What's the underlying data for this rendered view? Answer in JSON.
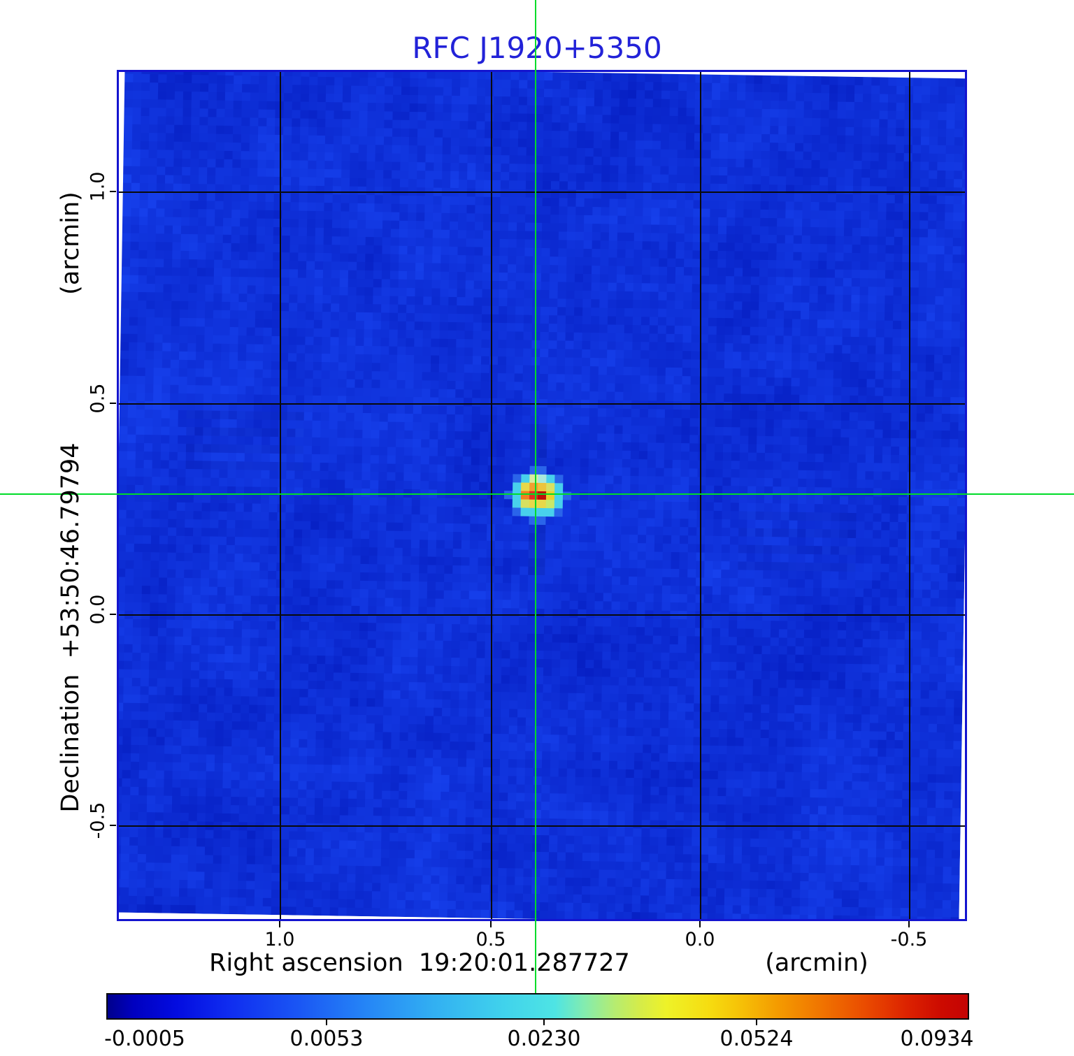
{
  "title": "RFC J1920+5350",
  "title_color": "#2222d8",
  "frame_color": "#1414cf",
  "crosshair_color": "#00dc28",
  "axes": {
    "x": {
      "label": "Right ascension  19:20:01.287727",
      "unit": "(arcmin)",
      "ticks": [
        "1.0",
        "0.5",
        "0.0",
        "-0.5"
      ]
    },
    "y": {
      "label": "Declination  +53:50:46.79794",
      "unit": "(arcmin)",
      "ticks": [
        "1.0",
        "0.5",
        "0.0",
        "-0.5"
      ]
    }
  },
  "colorbar": {
    "labels": [
      "-0.0005",
      "0.0053",
      "0.0230",
      "0.0524",
      "0.0934"
    ],
    "stops": [
      [
        0.0,
        "#00008c"
      ],
      [
        0.03,
        "#0000c0"
      ],
      [
        0.08,
        "#030ce0"
      ],
      [
        0.14,
        "#0f2cf0"
      ],
      [
        0.22,
        "#1a55f4"
      ],
      [
        0.3,
        "#2585f6"
      ],
      [
        0.38,
        "#32b0f2"
      ],
      [
        0.46,
        "#40d2ec"
      ],
      [
        0.52,
        "#4ee4e4"
      ],
      [
        0.555,
        "#84ecae"
      ],
      [
        0.59,
        "#b6ec70"
      ],
      [
        0.62,
        "#d6ec48"
      ],
      [
        0.65,
        "#eef228"
      ],
      [
        0.7,
        "#f6dc10"
      ],
      [
        0.73,
        "#f6c608"
      ],
      [
        0.78,
        "#f49a00"
      ],
      [
        0.83,
        "#f07400"
      ],
      [
        0.88,
        "#ea4c00"
      ],
      [
        0.93,
        "#dc2200"
      ],
      [
        0.97,
        "#cc0a00"
      ],
      [
        1.0,
        "#c40404"
      ]
    ]
  },
  "chart_data": {
    "type": "heatmap",
    "title": "RFC J1920+5350",
    "xlabel": "Right ascension 19:20:01.287727 (arcmin)",
    "ylabel": "Declination +53:50:46.79794 (arcmin)",
    "x_ticks": [
      1.0,
      0.5,
      0.0,
      -0.5
    ],
    "y_ticks": [
      1.0,
      0.5,
      0.0,
      -0.5
    ],
    "x_range_arcmin": [
      1.38,
      -0.63
    ],
    "y_range_arcmin": [
      -0.72,
      1.28
    ],
    "colorbar_values": [
      -0.0005,
      0.0053,
      0.023,
      0.0524,
      0.0934
    ],
    "intensity_min": -0.0005,
    "intensity_max": 0.0934,
    "grid": true,
    "colormap": "rainbow (dark blue - blue - cyan - green - yellow - orange - red)",
    "source": {
      "ra_offset_arcmin": 0.39,
      "dec_offset_arcmin": 0.28,
      "peak_value": 0.0934,
      "marked_by_green_crosshair": true
    },
    "background": "blue low-level noise around 0"
  }
}
